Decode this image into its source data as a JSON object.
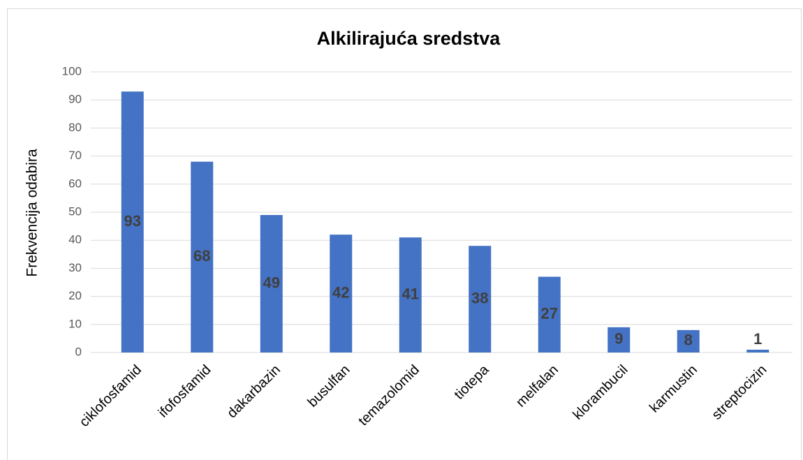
{
  "chart_data": {
    "type": "bar",
    "title": "Alkilirajuća sredstva",
    "y_label": "Frekvencija odabira",
    "categories": [
      "ciklofosfamid",
      "ifofosfamid",
      "dakarbazin",
      "busulfan",
      "temazolomid",
      "tiotepa",
      "melfalan",
      "klorambucil",
      "karmustin",
      "streptocizin"
    ],
    "values": [
      93,
      68,
      49,
      42,
      41,
      38,
      27,
      9,
      8,
      1
    ],
    "color": "#4472c4",
    "ylim": [
      0,
      100
    ],
    "yticks": [
      0,
      10,
      20,
      30,
      40,
      50,
      60,
      70,
      80,
      90,
      100
    ],
    "grid": true
  }
}
